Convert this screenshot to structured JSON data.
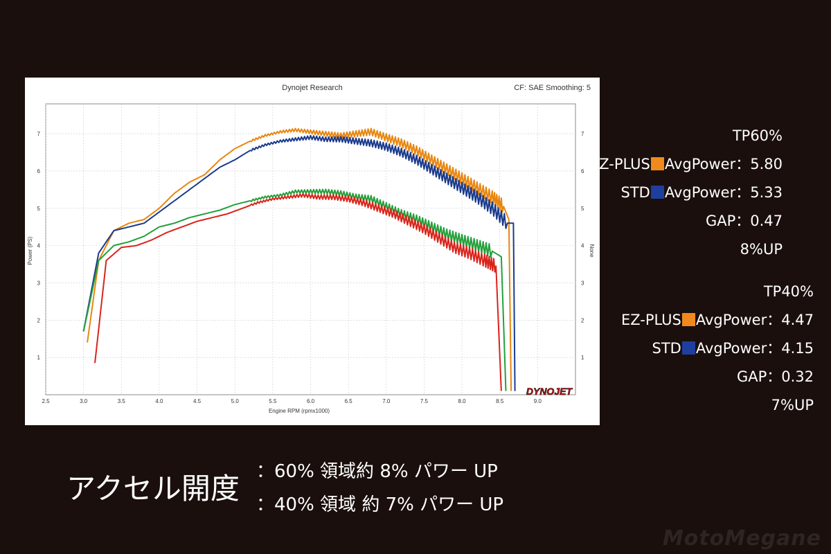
{
  "chart_data": {
    "type": "line",
    "title": "Dynojet Research",
    "subtitle": "CF: SAE Smoothing: 5",
    "xlabel": "Engine RPM (rpmx1000)",
    "ylabel": "Power (PS)",
    "ylabel_right": "None",
    "xlim": [
      2.5,
      9.5
    ],
    "ylim": [
      0,
      7.8
    ],
    "x_ticks": [
      "2.5",
      "3.0",
      "3.5",
      "4.0",
      "4.5",
      "5.0",
      "5.5",
      "6.0",
      "6.5",
      "7.0",
      "7.5",
      "8.0",
      "8.5",
      "9.0"
    ],
    "y_ticks": [
      "1",
      "2",
      "3",
      "4",
      "5",
      "6",
      "7"
    ],
    "grid": true,
    "series": [
      {
        "color": "#e8860f",
        "x": [
          3.05,
          3.2,
          3.4,
          3.6,
          3.8,
          4.0,
          4.2,
          4.4,
          4.6,
          4.8,
          5.0,
          5.2,
          5.4,
          5.6,
          5.8,
          6.0,
          6.2,
          6.4,
          6.6,
          6.8,
          7.0,
          7.2,
          7.4,
          7.6,
          7.8,
          8.0,
          8.2,
          8.4,
          8.55,
          8.62,
          8.65
        ],
        "y": [
          1.4,
          3.6,
          4.4,
          4.6,
          4.7,
          5.0,
          5.4,
          5.7,
          5.9,
          6.3,
          6.6,
          6.8,
          6.95,
          7.05,
          7.1,
          7.05,
          7.0,
          6.95,
          7.0,
          7.05,
          6.9,
          6.75,
          6.55,
          6.3,
          6.05,
          5.8,
          5.55,
          5.3,
          5.05,
          4.7,
          0.1
        ]
      },
      {
        "color": "#1a3a8c",
        "x": [
          3.0,
          3.2,
          3.4,
          3.6,
          3.8,
          4.0,
          4.2,
          4.4,
          4.6,
          4.8,
          5.0,
          5.2,
          5.4,
          5.6,
          5.8,
          6.0,
          6.2,
          6.4,
          6.6,
          6.8,
          7.0,
          7.2,
          7.4,
          7.6,
          7.8,
          8.0,
          8.2,
          8.4,
          8.6,
          8.68,
          8.7
        ],
        "y": [
          1.7,
          3.8,
          4.4,
          4.5,
          4.6,
          4.9,
          5.2,
          5.5,
          5.8,
          6.1,
          6.3,
          6.55,
          6.7,
          6.8,
          6.85,
          6.9,
          6.85,
          6.85,
          6.8,
          6.75,
          6.65,
          6.5,
          6.3,
          6.05,
          5.8,
          5.55,
          5.3,
          5.0,
          4.6,
          4.6,
          0.1
        ]
      },
      {
        "color": "#22a03a",
        "x": [
          3.0,
          3.2,
          3.4,
          3.6,
          3.8,
          4.0,
          4.2,
          4.4,
          4.6,
          4.8,
          5.0,
          5.2,
          5.4,
          5.6,
          5.8,
          6.0,
          6.2,
          6.4,
          6.6,
          6.8,
          7.0,
          7.2,
          7.4,
          7.6,
          7.8,
          8.0,
          8.2,
          8.4,
          8.52,
          8.58
        ],
        "y": [
          1.7,
          3.6,
          4.0,
          4.1,
          4.25,
          4.5,
          4.6,
          4.75,
          4.85,
          4.95,
          5.1,
          5.2,
          5.3,
          5.35,
          5.45,
          5.45,
          5.45,
          5.4,
          5.3,
          5.25,
          5.05,
          4.85,
          4.7,
          4.5,
          4.3,
          4.15,
          4.0,
          3.85,
          3.7,
          0.1
        ]
      },
      {
        "color": "#d9241b",
        "x": [
          3.15,
          3.3,
          3.5,
          3.7,
          3.9,
          4.1,
          4.3,
          4.5,
          4.7,
          4.9,
          5.1,
          5.3,
          5.5,
          5.7,
          5.9,
          6.1,
          6.3,
          6.5,
          6.7,
          6.9,
          7.1,
          7.3,
          7.5,
          7.7,
          7.9,
          8.1,
          8.3,
          8.45,
          8.52
        ],
        "y": [
          0.85,
          3.6,
          3.95,
          4.0,
          4.15,
          4.35,
          4.5,
          4.65,
          4.75,
          4.85,
          5.0,
          5.15,
          5.25,
          5.3,
          5.35,
          5.3,
          5.3,
          5.25,
          5.15,
          5.0,
          4.85,
          4.65,
          4.45,
          4.2,
          3.95,
          3.8,
          3.6,
          3.45,
          0.1
        ]
      }
    ]
  },
  "brand_logo": "DYNOJET",
  "tp60": {
    "title": "TP60%",
    "ez_label": "EZ-PLUS",
    "ez_value": "AvgPower：5.80",
    "std_label": "STD",
    "std_value": "AvgPower：5.33",
    "gap": "GAP：0.47",
    "up": "8%UP"
  },
  "tp40": {
    "title": "TP40%",
    "ez_label": "EZ-PLUS",
    "ez_value": "AvgPower：4.47",
    "std_label": "STD",
    "std_value": "AvgPower：4.15",
    "gap": "GAP：0.32",
    "up": "7%UP"
  },
  "colors": {
    "ez": "#f08a1c",
    "std": "#1f3f9e"
  },
  "caption": {
    "title": "アクセル開度",
    "line1": "：60% 領域約 8% パワー UP",
    "line2": "：40% 領域 約 7% パワー UP"
  },
  "watermark": "MotoMegane"
}
